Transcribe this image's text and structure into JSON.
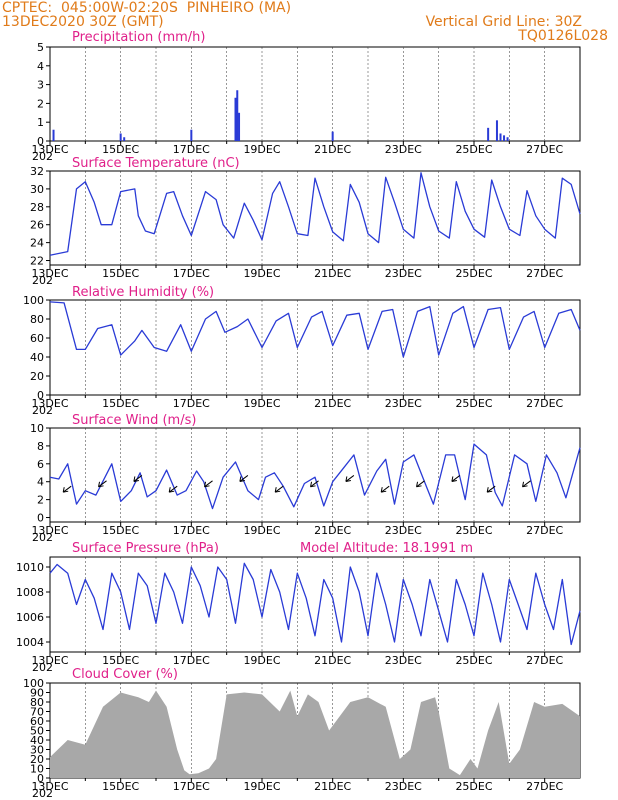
{
  "header": {
    "source": "CPTEC:",
    "location": "045:00W-02:20S",
    "place": "PINHEIRO (MA)",
    "run": "13DEC2020 30Z (GMT)",
    "grid_line": "Vertical Grid Line: 30Z",
    "code": "TQ0126L028"
  },
  "chart_data": [
    {
      "type": "bar",
      "title": "Precipitation (mm/h)",
      "ylim": [
        0,
        5
      ],
      "yticks": [
        "0",
        "1",
        "2",
        "3",
        "4",
        "5"
      ],
      "x": [
        0.1,
        2.0,
        2.1,
        4.0,
        5.25,
        5.3,
        5.35,
        8.0,
        12.4,
        12.65,
        12.75,
        12.85,
        12.95
      ],
      "values": [
        0.6,
        0.4,
        0.2,
        0.6,
        2.3,
        2.7,
        1.5,
        0.5,
        0.7,
        1.1,
        0.4,
        0.3,
        0.2
      ]
    },
    {
      "type": "line",
      "title": "Surface Temperature (nC)",
      "ylim": [
        21.5,
        32
      ],
      "yticks": [
        "22",
        "24",
        "26",
        "28",
        "30",
        "32"
      ],
      "x": [
        0,
        0.5,
        0.75,
        1.0,
        1.25,
        1.45,
        1.75,
        2.0,
        2.4,
        2.5,
        2.7,
        2.95,
        3.3,
        3.5,
        3.75,
        4.0,
        4.4,
        4.7,
        4.9,
        5.2,
        5.5,
        5.75,
        6.0,
        6.3,
        6.5,
        6.75,
        7.0,
        7.3,
        7.5,
        7.75,
        8.0,
        8.3,
        8.5,
        8.75,
        9.0,
        9.3,
        9.5,
        9.75,
        10.0,
        10.3,
        10.5,
        10.75,
        11.0,
        11.3,
        11.5,
        11.75,
        12.0,
        12.3,
        12.5,
        12.75,
        13.0,
        13.3,
        13.5,
        13.75,
        14.0,
        14.3,
        14.5,
        14.75,
        15.0
      ],
      "values": [
        22.6,
        23.0,
        30.0,
        30.8,
        28.5,
        26.0,
        26.0,
        29.7,
        30.0,
        27.0,
        25.3,
        25.0,
        29.5,
        29.7,
        27.0,
        24.8,
        29.7,
        28.8,
        26.0,
        24.5,
        28.4,
        26.5,
        24.3,
        29.5,
        30.8,
        28.0,
        25.0,
        24.8,
        31.2,
        28.0,
        25.2,
        24.2,
        30.5,
        28.5,
        25.0,
        24.0,
        31.3,
        28.5,
        25.5,
        24.5,
        31.8,
        28.0,
        25.3,
        24.5,
        30.8,
        27.5,
        25.5,
        24.6,
        31.0,
        28.0,
        25.5,
        24.8,
        29.8,
        27.0,
        25.5,
        24.5,
        31.2,
        30.5,
        27.2
      ]
    },
    {
      "type": "line",
      "title": "Relative Humidity (%)",
      "ylim": [
        0,
        100
      ],
      "yticks": [
        "0",
        "20",
        "40",
        "60",
        "80",
        "100"
      ],
      "x": [
        0,
        0.4,
        0.75,
        1.0,
        1.35,
        1.75,
        2.0,
        2.4,
        2.6,
        2.95,
        3.3,
        3.7,
        4.0,
        4.4,
        4.7,
        4.95,
        5.3,
        5.6,
        6.0,
        6.4,
        6.75,
        7.0,
        7.4,
        7.7,
        8.0,
        8.4,
        8.75,
        9.0,
        9.4,
        9.7,
        10.0,
        10.4,
        10.75,
        11.0,
        11.4,
        11.7,
        12.0,
        12.4,
        12.75,
        13.0,
        13.4,
        13.7,
        14.0,
        14.4,
        14.75,
        15.0
      ],
      "values": [
        98,
        97,
        48,
        48,
        70,
        74,
        42,
        57,
        68,
        50,
        46,
        74,
        46,
        80,
        88,
        66,
        72,
        80,
        50,
        78,
        86,
        50,
        82,
        88,
        52,
        84,
        86,
        48,
        88,
        90,
        40,
        88,
        93,
        42,
        86,
        93,
        50,
        90,
        92,
        48,
        82,
        88,
        50,
        86,
        90,
        68
      ]
    },
    {
      "type": "line",
      "title": "Surface Wind (m/s)",
      "ylim": [
        -0.5,
        10
      ],
      "yticks": [
        "0",
        "2",
        "4",
        "6",
        "8",
        "10"
      ],
      "x": [
        0,
        0.25,
        0.5,
        0.75,
        1.0,
        1.3,
        1.75,
        2.0,
        2.3,
        2.55,
        2.75,
        3.0,
        3.3,
        3.6,
        3.85,
        4.15,
        4.35,
        4.6,
        4.9,
        5.25,
        5.6,
        5.9,
        6.1,
        6.35,
        6.6,
        6.9,
        7.2,
        7.5,
        7.75,
        8.0,
        8.3,
        8.6,
        8.9,
        9.25,
        9.5,
        9.75,
        10.0,
        10.3,
        10.6,
        10.85,
        11.2,
        11.45,
        11.75,
        12.0,
        12.35,
        12.6,
        12.8,
        13.15,
        13.5,
        13.75,
        14.05,
        14.35,
        14.6,
        15.0
      ],
      "values": [
        4.5,
        4.3,
        6.0,
        1.5,
        3.0,
        2.5,
        6.0,
        1.8,
        3.0,
        5.0,
        2.3,
        3.0,
        5.3,
        2.5,
        3.0,
        5.2,
        4.0,
        1.0,
        4.5,
        6.2,
        3.0,
        2.0,
        4.5,
        5.0,
        3.5,
        1.2,
        3.8,
        4.5,
        1.3,
        4.0,
        5.5,
        7.0,
        2.5,
        5.2,
        6.5,
        1.5,
        6.2,
        7.0,
        4.0,
        1.5,
        7.0,
        7.0,
        2.0,
        8.2,
        7.0,
        2.8,
        1.3,
        7.0,
        6.0,
        1.8,
        7.0,
        5.0,
        2.2,
        7.8
      ]
    },
    {
      "type": "line",
      "title": "Surface Pressure (hPa)",
      "subtitle": "Model Altitude: 18.1991 m",
      "ylim": [
        1003.2,
        1010.8
      ],
      "yticks": [
        "1004",
        "1006",
        "1008",
        "1010"
      ],
      "x": [
        0,
        0.2,
        0.5,
        0.75,
        1.0,
        1.25,
        1.5,
        1.75,
        2.0,
        2.25,
        2.5,
        2.75,
        3.0,
        3.25,
        3.5,
        3.75,
        4.0,
        4.25,
        4.5,
        4.75,
        5.0,
        5.25,
        5.5,
        5.75,
        6.0,
        6.25,
        6.5,
        6.75,
        7.0,
        7.25,
        7.5,
        7.75,
        8.0,
        8.25,
        8.5,
        8.75,
        9.0,
        9.25,
        9.5,
        9.75,
        10.0,
        10.25,
        10.5,
        10.75,
        11.0,
        11.25,
        11.5,
        11.75,
        12.0,
        12.25,
        12.5,
        12.75,
        13.0,
        13.25,
        13.5,
        13.75,
        14.0,
        14.25,
        14.5,
        14.75,
        15.0
      ],
      "values": [
        1009.5,
        1010.2,
        1009.5,
        1007.0,
        1009.0,
        1007.5,
        1005.0,
        1009.5,
        1008.0,
        1005.0,
        1009.5,
        1008.5,
        1005.5,
        1009.5,
        1008.0,
        1005.5,
        1010.0,
        1008.5,
        1006.0,
        1010.0,
        1009.0,
        1005.5,
        1010.3,
        1009.0,
        1006.0,
        1009.8,
        1008.0,
        1005.0,
        1009.5,
        1007.5,
        1004.5,
        1009.0,
        1007.5,
        1004.0,
        1010.0,
        1008.0,
        1004.5,
        1009.5,
        1007.0,
        1004.0,
        1009.0,
        1007.0,
        1004.5,
        1009.0,
        1006.5,
        1004.0,
        1009.0,
        1007.0,
        1004.5,
        1009.5,
        1007.0,
        1004.0,
        1009.0,
        1007.0,
        1005.0,
        1009.5,
        1007.0,
        1005.0,
        1009.0,
        1003.8,
        1006.5
      ]
    },
    {
      "type": "area",
      "title": "Cloud Cover (%)",
      "ylim": [
        0,
        100
      ],
      "yticks": [
        "0",
        "10",
        "20",
        "30",
        "40",
        "50",
        "60",
        "70",
        "80",
        "90",
        "100"
      ],
      "x": [
        0,
        0.5,
        1.0,
        1.5,
        2.0,
        2.5,
        2.8,
        3.0,
        3.3,
        3.6,
        3.8,
        3.95,
        4.2,
        4.5,
        4.7,
        5.0,
        5.5,
        6.0,
        6.5,
        6.8,
        7.0,
        7.3,
        7.6,
        7.9,
        8.1,
        8.5,
        9.0,
        9.5,
        9.9,
        10.2,
        10.5,
        10.9,
        11.0,
        11.3,
        11.6,
        11.9,
        12.1,
        12.4,
        12.7,
        13.0,
        13.3,
        13.7,
        14.0,
        14.5,
        15.0
      ],
      "values": [
        22,
        40,
        35,
        75,
        90,
        85,
        80,
        92,
        75,
        30,
        8,
        4,
        5,
        10,
        20,
        88,
        90,
        88,
        70,
        92,
        65,
        88,
        80,
        50,
        60,
        80,
        85,
        75,
        20,
        30,
        80,
        85,
        70,
        10,
        3,
        20,
        10,
        50,
        80,
        15,
        30,
        80,
        75,
        78,
        65
      ]
    }
  ],
  "x_axis": {
    "ticks": [
      "13DEC",
      "15DEC",
      "17DEC",
      "19DEC",
      "21DEC",
      "23DEC",
      "25DEC",
      "27DEC"
    ],
    "stub": "202"
  },
  "colors": {
    "series": "#2a3bd6",
    "cloud": "#a8a8a8",
    "title": "#e0208a",
    "header": "#e07b1a"
  },
  "wind_arrow_icon": "arrow-icon"
}
